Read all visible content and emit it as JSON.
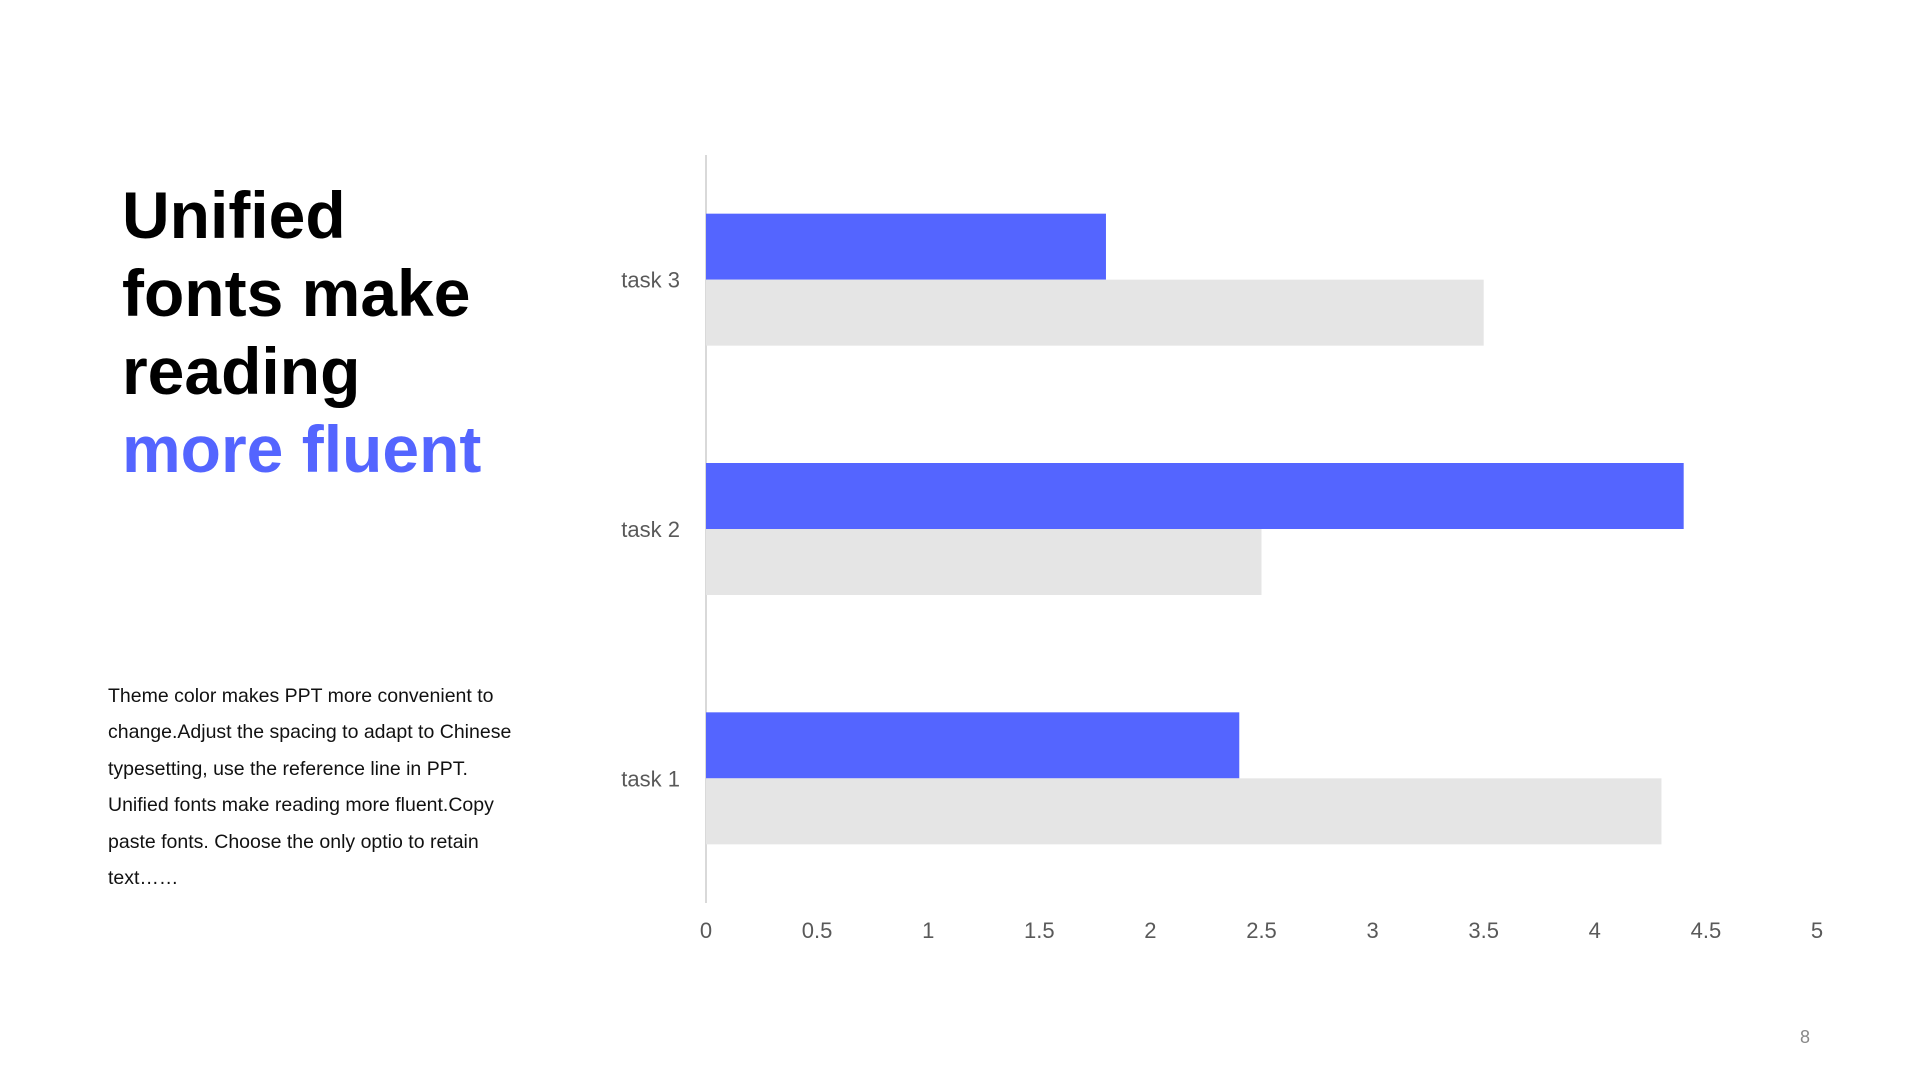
{
  "slide": {
    "headline_lines": [
      "Unified",
      "fonts make",
      "reading"
    ],
    "headline_accent": "more fluent",
    "body_text": "Theme  color makes PPT more convenient to change.Adjust  the spacing to adapt to Chinese  typesetting, use the reference line in PPT. Unified  fonts make reading more fluent.Copy paste fonts. Choose the only optio to retain text……",
    "page_number": "8"
  },
  "colors": {
    "accent": "#5465FF",
    "secondary_bar": "#E5E5E5",
    "axis_line": "#D9D9D9",
    "label": "#595959"
  },
  "chart_data": {
    "type": "bar",
    "orientation": "horizontal",
    "categories": [
      "task 1",
      "task 2",
      "task 3"
    ],
    "series": [
      {
        "values": [
          2.4,
          4.4,
          1.8
        ],
        "color": "#5465FF"
      },
      {
        "values": [
          4.3,
          2.5,
          3.5
        ],
        "color": "#E5E5E5"
      }
    ],
    "x_ticks": [
      "0",
      "0.5",
      "1",
      "1.5",
      "2",
      "2.5",
      "3",
      "3.5",
      "4",
      "4.5",
      "5"
    ],
    "xlim": [
      0,
      5
    ],
    "grid": false,
    "legend": "none"
  }
}
